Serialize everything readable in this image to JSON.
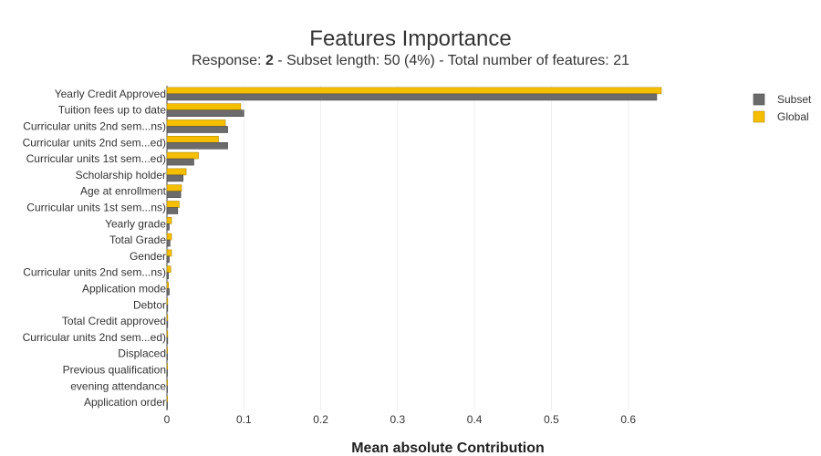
{
  "chart_data": {
    "type": "bar",
    "orientation": "horizontal",
    "title": "Features Importance",
    "subtitle": {
      "prefix": "Response: ",
      "response": "2",
      "suffix": " - Subset length: 50 (4%) - Total number of features: 21"
    },
    "xlabel": "Mean absolute Contribution",
    "ylabel": "",
    "xlim": [
      0,
      0.7
    ],
    "xticks": [
      "0",
      "0.1",
      "0.2",
      "0.3",
      "0.4",
      "0.5",
      "0.6"
    ],
    "xtick_values": [
      0,
      0.1,
      0.2,
      0.3,
      0.4,
      0.5,
      0.6
    ],
    "grid": true,
    "legend_position": "top-right",
    "categories": [
      "Yearly Credit Approved",
      "Tuition fees up to date",
      "Curricular units 2nd sem...ns)",
      "Curricular units 2nd sem...ed)",
      "Curricular units 1st sem...ed)",
      "Scholarship holder",
      "Age at enrollment",
      "Curricular units 1st sem...ns)",
      "Yearly grade",
      "Total Grade",
      "Gender",
      "Curricular units 2nd sem...ns)",
      "Application mode",
      "Debtor",
      "Total Credit approved",
      "Curricular units 2nd sem...ed)",
      "Displaced",
      "Previous qualification",
      "evening attendance",
      "Application order"
    ],
    "series": [
      {
        "name": "Subset",
        "color": "#6b6b6b",
        "values": [
          0.637,
          0.1,
          0.079,
          0.079,
          0.035,
          0.021,
          0.018,
          0.014,
          0.003,
          0.004,
          0.003,
          0.002,
          0.003,
          0.001,
          0.001,
          0.001,
          0.0005,
          0.0005,
          0.0005,
          0.0005
        ]
      },
      {
        "name": "Global",
        "color": "#f5bf00",
        "values": [
          0.643,
          0.096,
          0.076,
          0.067,
          0.041,
          0.025,
          0.019,
          0.016,
          0.006,
          0.006,
          0.006,
          0.005,
          0.002,
          0.001,
          0.001,
          0.001,
          0.0005,
          0.0005,
          0.0005,
          0.0005
        ]
      }
    ]
  }
}
